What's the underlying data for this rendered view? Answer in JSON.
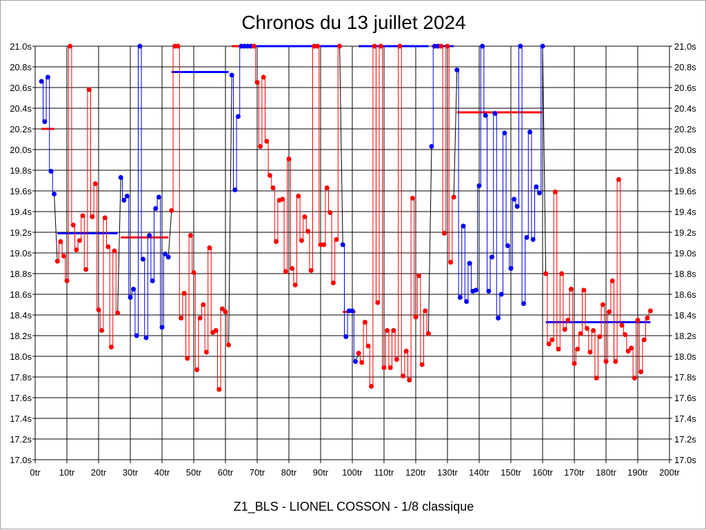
{
  "chart_data": {
    "type": "line",
    "title": "Chronos du 13 juillet 2024",
    "subtitle": "Z1_BLS - LIONEL COSSON - 1/8 classique",
    "xlim": [
      0,
      200
    ],
    "ylim": [
      17.0,
      21.0
    ],
    "grid": true,
    "x_ticks": [
      "0tr",
      "10tr",
      "20tr",
      "30tr",
      "40tr",
      "50tr",
      "60tr",
      "70tr",
      "80tr",
      "90tr",
      "100tr",
      "110tr",
      "120tr",
      "130tr",
      "140tr",
      "150tr",
      "160tr",
      "170tr",
      "180tr",
      "190tr",
      "200tr"
    ],
    "y_ticks": [
      "17.0s",
      "17.2s",
      "17.4s",
      "17.6s",
      "17.8s",
      "18.0s",
      "18.2s",
      "18.4s",
      "18.6s",
      "18.8s",
      "19.0s",
      "19.2s",
      "19.4s",
      "19.6s",
      "19.8s",
      "20.0s",
      "20.2s",
      "20.4s",
      "20.6s",
      "20.8s",
      "21.0s"
    ],
    "series": [
      {
        "color": "#0000ff",
        "avg_color": "#ff0000",
        "average": 20.2,
        "points": [
          [
            2,
            20.66
          ],
          [
            3,
            20.27
          ],
          [
            4,
            20.7
          ],
          [
            5,
            19.79
          ],
          [
            6,
            19.57
          ]
        ]
      },
      {
        "color": "#ff0000",
        "avg_color": "#0000ff",
        "average": 19.19,
        "points": [
          [
            7,
            18.92
          ],
          [
            8,
            19.11
          ],
          [
            9,
            18.97
          ],
          [
            10,
            18.73
          ],
          [
            11,
            21.0
          ],
          [
            12,
            19.27
          ],
          [
            13,
            19.03
          ],
          [
            14,
            19.12
          ],
          [
            15,
            19.36
          ],
          [
            16,
            18.84
          ],
          [
            17,
            20.58
          ],
          [
            18,
            19.35
          ],
          [
            19,
            19.67
          ],
          [
            20,
            18.45
          ],
          [
            21,
            18.25
          ],
          [
            22,
            19.34
          ],
          [
            23,
            19.06
          ],
          [
            24,
            18.09
          ],
          [
            25,
            19.02
          ],
          [
            26,
            18.42
          ]
        ]
      },
      {
        "color": "#0000ff",
        "avg_color": "#ff0000",
        "average": 19.15,
        "points": [
          [
            27,
            19.73
          ],
          [
            28,
            19.51
          ],
          [
            29,
            19.55
          ],
          [
            30,
            18.57
          ],
          [
            31,
            18.65
          ],
          [
            32,
            18.2
          ],
          [
            33,
            21.0
          ],
          [
            34,
            18.94
          ],
          [
            35,
            18.18
          ],
          [
            36,
            19.17
          ],
          [
            37,
            18.73
          ],
          [
            38,
            19.43
          ],
          [
            39,
            19.54
          ],
          [
            40,
            18.28
          ],
          [
            41,
            18.99
          ],
          [
            42,
            18.96
          ]
        ]
      },
      {
        "color": "#ff0000",
        "avg_color": "#0000ff",
        "average": 20.75,
        "points": [
          [
            43,
            19.41
          ],
          [
            44,
            21.0
          ],
          [
            45,
            21.0
          ],
          [
            46,
            18.37
          ],
          [
            47,
            18.61
          ],
          [
            48,
            17.98
          ],
          [
            49,
            19.17
          ],
          [
            50,
            18.81
          ],
          [
            51,
            17.87
          ],
          [
            52,
            18.37
          ],
          [
            53,
            18.5
          ],
          [
            54,
            18.04
          ],
          [
            55,
            19.05
          ],
          [
            56,
            18.23
          ],
          [
            57,
            18.25
          ],
          [
            58,
            17.68
          ],
          [
            59,
            18.46
          ],
          [
            60,
            18.43
          ],
          [
            61,
            18.11
          ]
        ]
      },
      {
        "color": "#0000ff",
        "avg_color": "#ff0000",
        "average": 21.0,
        "points": [
          [
            62,
            20.72
          ],
          [
            63,
            19.61
          ],
          [
            64,
            20.32
          ],
          [
            65,
            21.0
          ],
          [
            66,
            21.0
          ],
          [
            67,
            21.0
          ],
          [
            68,
            21.0
          ]
        ]
      },
      {
        "color": "#ff0000",
        "avg_color": "#0000ff",
        "average": 21.0,
        "points": [
          [
            69,
            21.0
          ],
          [
            70,
            20.65
          ],
          [
            71,
            20.03
          ],
          [
            72,
            20.7
          ],
          [
            73,
            20.08
          ],
          [
            74,
            19.75
          ],
          [
            75,
            19.63
          ],
          [
            76,
            19.11
          ],
          [
            77,
            19.51
          ],
          [
            78,
            19.52
          ],
          [
            79,
            18.82
          ],
          [
            80,
            19.91
          ],
          [
            81,
            18.85
          ],
          [
            82,
            18.69
          ],
          [
            83,
            19.55
          ],
          [
            84,
            19.12
          ],
          [
            85,
            19.35
          ],
          [
            86,
            19.21
          ],
          [
            87,
            18.83
          ],
          [
            88,
            21.0
          ],
          [
            89,
            21.0
          ],
          [
            90,
            19.08
          ],
          [
            91,
            19.08
          ],
          [
            92,
            19.63
          ],
          [
            93,
            19.39
          ],
          [
            94,
            18.71
          ],
          [
            95,
            19.13
          ],
          [
            96,
            21.0
          ]
        ]
      },
      {
        "color": "#0000ff",
        "avg_color": "#ff0000",
        "average": 18.43,
        "points": [
          [
            97,
            19.08
          ],
          [
            98,
            18.19
          ],
          [
            99,
            18.44
          ],
          [
            100,
            18.44
          ],
          [
            101,
            17.95
          ]
        ]
      },
      {
        "color": "#ff0000",
        "avg_color": "#0000ff",
        "average": 21.0,
        "points": [
          [
            102,
            18.03
          ],
          [
            103,
            17.94
          ],
          [
            104,
            18.33
          ],
          [
            105,
            18.1
          ],
          [
            106,
            17.71
          ],
          [
            107,
            21.0
          ],
          [
            108,
            18.52
          ],
          [
            109,
            21.0
          ],
          [
            110,
            17.89
          ],
          [
            111,
            18.25
          ],
          [
            112,
            17.89
          ],
          [
            113,
            18.25
          ],
          [
            114,
            17.97
          ],
          [
            115,
            21.0
          ],
          [
            116,
            17.81
          ],
          [
            117,
            18.05
          ],
          [
            118,
            17.77
          ],
          [
            119,
            19.53
          ],
          [
            120,
            18.38
          ],
          [
            121,
            18.78
          ],
          [
            122,
            17.92
          ],
          [
            123,
            18.44
          ],
          [
            124,
            18.22
          ]
        ]
      },
      {
        "color": "#0000ff",
        "avg_color": "#ff0000",
        "average": 21.0,
        "points": [
          [
            125,
            20.03
          ],
          [
            126,
            21.0
          ],
          [
            127,
            21.0
          ]
        ]
      },
      {
        "color": "#ff0000",
        "avg_color": "#0000ff",
        "average": 21.0,
        "points": [
          [
            128,
            21.0
          ],
          [
            129,
            19.19
          ],
          [
            130,
            21.0
          ],
          [
            131,
            18.91
          ],
          [
            132,
            19.54
          ]
        ]
      },
      {
        "color": "#0000ff",
        "avg_color": "#ff0000",
        "average": 20.36,
        "points": [
          [
            133,
            20.77
          ],
          [
            134,
            18.57
          ],
          [
            135,
            19.26
          ],
          [
            136,
            18.53
          ],
          [
            137,
            18.9
          ],
          [
            138,
            18.63
          ],
          [
            139,
            18.64
          ],
          [
            140,
            19.65
          ],
          [
            141,
            21.0
          ],
          [
            142,
            20.33
          ],
          [
            143,
            18.63
          ],
          [
            144,
            18.96
          ],
          [
            145,
            20.35
          ],
          [
            146,
            18.37
          ],
          [
            147,
            18.6
          ],
          [
            148,
            20.16
          ],
          [
            149,
            19.07
          ],
          [
            150,
            18.85
          ],
          [
            151,
            19.52
          ],
          [
            152,
            19.45
          ],
          [
            153,
            21.0
          ],
          [
            154,
            18.51
          ],
          [
            155,
            19.15
          ],
          [
            156,
            20.17
          ],
          [
            157,
            19.13
          ],
          [
            158,
            19.64
          ],
          [
            159,
            19.58
          ],
          [
            160,
            21.0
          ]
        ]
      },
      {
        "color": "#ff0000",
        "avg_color": "#0000ff",
        "average": 18.33,
        "points": [
          [
            161,
            18.8
          ],
          [
            162,
            18.12
          ],
          [
            163,
            18.16
          ],
          [
            164,
            19.59
          ],
          [
            165,
            18.07
          ],
          [
            166,
            18.8
          ],
          [
            167,
            18.26
          ],
          [
            168,
            18.35
          ],
          [
            169,
            18.65
          ],
          [
            170,
            17.93
          ],
          [
            171,
            18.07
          ],
          [
            172,
            18.22
          ],
          [
            173,
            18.64
          ],
          [
            174,
            18.27
          ],
          [
            175,
            18.04
          ],
          [
            176,
            18.25
          ],
          [
            177,
            17.79
          ],
          [
            178,
            18.19
          ],
          [
            179,
            18.5
          ],
          [
            180,
            17.95
          ],
          [
            181,
            18.43
          ],
          [
            182,
            18.73
          ],
          [
            183,
            17.95
          ],
          [
            184,
            19.71
          ],
          [
            185,
            18.3
          ],
          [
            186,
            18.21
          ],
          [
            187,
            18.05
          ],
          [
            188,
            18.08
          ],
          [
            189,
            17.79
          ],
          [
            190,
            18.35
          ],
          [
            191,
            17.85
          ],
          [
            192,
            18.16
          ],
          [
            193,
            18.37
          ],
          [
            194,
            18.44
          ]
        ]
      }
    ]
  }
}
